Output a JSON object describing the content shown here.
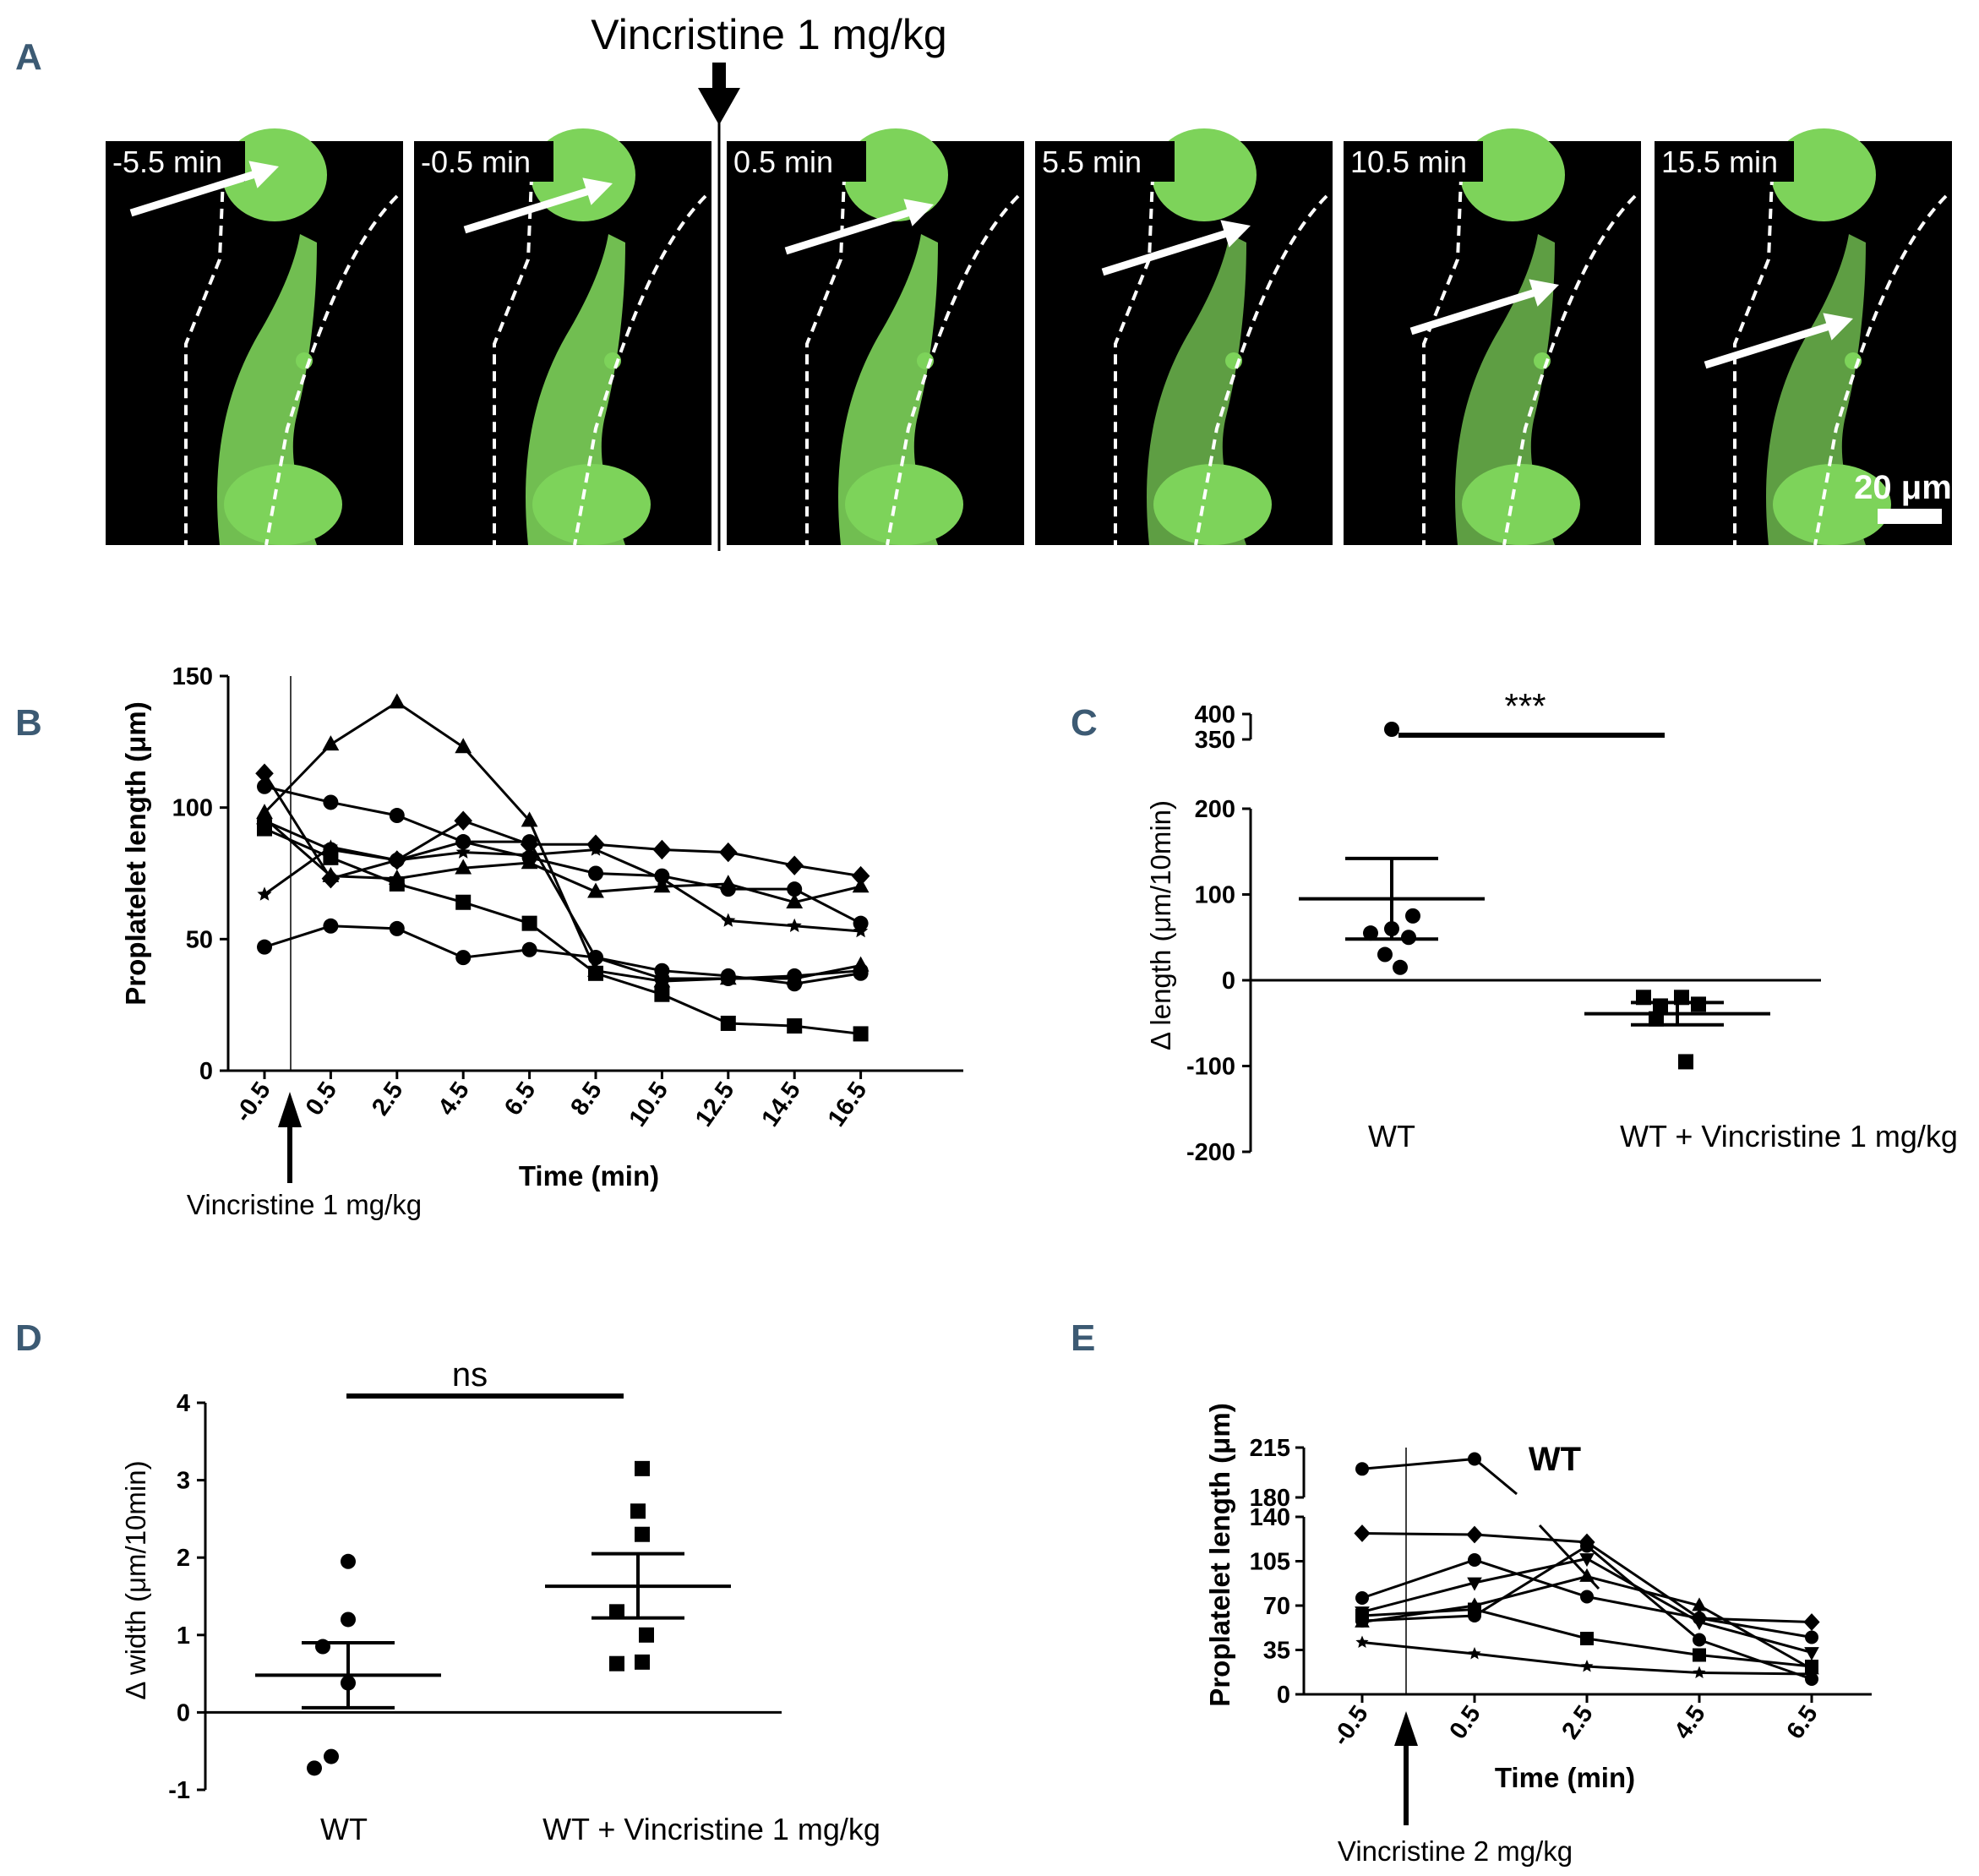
{
  "panels": {
    "a": {
      "letter": "A",
      "treatment_label": "Vincristine 1 mg/kg",
      "frames": [
        "-5.5 min",
        "-0.5 min",
        "0.5 min",
        "5.5 min",
        "10.5 min",
        "15.5 min"
      ],
      "scale_bar": "20 μm"
    },
    "b": {
      "letter": "B"
    },
    "c": {
      "letter": "C"
    },
    "d": {
      "letter": "D"
    },
    "e": {
      "letter": "E"
    }
  },
  "colors": {
    "green": "#7dd35a",
    "black": "#000000",
    "panel_letter": "#3c5a73"
  },
  "chart_data": [
    {
      "id": "B",
      "type": "line",
      "ylabel": "Proplatelet length (μm)",
      "xlabel": "Time (min)",
      "x": [
        -0.5,
        0.5,
        2.5,
        4.5,
        6.5,
        8.5,
        10.5,
        12.5,
        14.5,
        16.5
      ],
      "x_tick_labels": [
        "-0.5",
        "0.5",
        "2.5",
        "4.5",
        "6.5",
        "8.5",
        "10.5",
        "12.5",
        "14.5",
        "16.5"
      ],
      "y_ticks": [
        0,
        50,
        100,
        150
      ],
      "ylim": [
        0,
        150
      ],
      "annotation": "Vincristine 1 mg/kg",
      "series": [
        {
          "marker": "triangle",
          "values": [
            98,
            124,
            140,
            123,
            95,
            38,
            34,
            35,
            35,
            40
          ]
        },
        {
          "marker": "circle",
          "values": [
            108,
            102,
            97,
            87,
            87,
            43,
            38,
            36,
            33,
            37
          ]
        },
        {
          "marker": "diamond",
          "values": [
            113,
            73,
            80,
            95,
            86,
            86,
            84,
            83,
            78,
            74
          ]
        },
        {
          "marker": "square",
          "values": [
            92,
            81,
            71,
            64,
            56,
            37,
            29,
            18,
            17,
            14
          ]
        },
        {
          "marker": "star",
          "values": [
            67,
            85,
            80,
            83,
            82,
            84,
            73,
            57,
            55,
            53
          ]
        },
        {
          "marker": "triangle",
          "values": [
            96,
            74,
            73,
            77,
            79,
            68,
            70,
            71,
            64,
            70
          ]
        },
        {
          "marker": "circle",
          "values": [
            95,
            84,
            80,
            87,
            81,
            75,
            74,
            69,
            69,
            56
          ]
        },
        {
          "marker": "circle",
          "values": [
            47,
            55,
            54,
            43,
            46,
            43,
            35,
            35,
            36,
            38
          ]
        }
      ]
    },
    {
      "id": "C",
      "type": "scatter",
      "ylabel": "Δ length (μm/10min)",
      "categories": [
        "WT",
        "WT + Vincristine 1 mg/kg"
      ],
      "y_tick_labels_lower": [
        "-200",
        "-100",
        "0",
        "100",
        "200"
      ],
      "y_tick_labels_upper": [
        "350",
        "400"
      ],
      "significance": "***",
      "groups": [
        {
          "name": "WT",
          "marker": "circle",
          "values": [
            15,
            30,
            50,
            55,
            60,
            75,
            370
          ],
          "mean": 95,
          "sem_upper": 142,
          "sem_lower": 48
        },
        {
          "name": "WT + Vincristine 1 mg/kg",
          "marker": "square",
          "values": [
            -95,
            -45,
            -30,
            -28,
            -20,
            -20
          ],
          "mean": -39,
          "sem_upper": -26,
          "sem_lower": -52
        }
      ]
    },
    {
      "id": "D",
      "type": "scatter",
      "ylabel": "Δ width (μm/10min)",
      "categories": [
        "WT",
        "WT + Vincristine 1 mg/kg"
      ],
      "y_ticks": [
        -1,
        0,
        1,
        2,
        3,
        4
      ],
      "ylim": [
        -1,
        4
      ],
      "significance": "ns",
      "groups": [
        {
          "name": "WT",
          "marker": "circle",
          "values": [
            -0.72,
            -0.57,
            0.38,
            0.85,
            1.2,
            1.95
          ],
          "mean": 0.48,
          "sem_upper": 0.9,
          "sem_lower": 0.06
        },
        {
          "name": "WT + Vincristine 1 mg/kg",
          "marker": "square",
          "values": [
            0.63,
            0.65,
            1.0,
            1.3,
            2.3,
            2.6,
            3.15
          ],
          "mean": 1.63,
          "sem_upper": 2.05,
          "sem_lower": 1.22
        }
      ]
    },
    {
      "id": "E",
      "type": "line",
      "ylabel": "Proplatelet length (μm)",
      "xlabel": "Time (min)",
      "x": [
        -0.5,
        0.5,
        2.5,
        4.5,
        6.5
      ],
      "x_tick_labels": [
        "-0.5",
        "0.5",
        "2.5",
        "4.5",
        "6.5"
      ],
      "y_tick_labels": [
        "0",
        "35",
        "70",
        "105",
        "140",
        "180",
        "215"
      ],
      "legend_text": "WT",
      "annotation": "Vincristine 2 mg/kg",
      "series": [
        {
          "marker": "circle",
          "values": [
            200,
            207,
            null,
            null,
            null
          ],
          "note": "upper broken segment"
        },
        {
          "marker": "diamond",
          "values": [
            127,
            126,
            120,
            60,
            57
          ]
        },
        {
          "marker": "circle",
          "values": [
            76,
            106,
            77,
            60,
            45
          ]
        },
        {
          "marker": "triangle-down",
          "values": [
            65,
            88,
            107,
            57,
            33
          ]
        },
        {
          "marker": "triangle",
          "values": [
            57,
            70,
            93,
            70,
            20
          ]
        },
        {
          "marker": "square",
          "values": [
            62,
            67,
            44,
            31,
            22
          ]
        },
        {
          "marker": "circle",
          "values": [
            58,
            62,
            117,
            43,
            12
          ]
        },
        {
          "marker": "star",
          "values": [
            41,
            32,
            22,
            17,
            16
          ]
        }
      ]
    }
  ]
}
